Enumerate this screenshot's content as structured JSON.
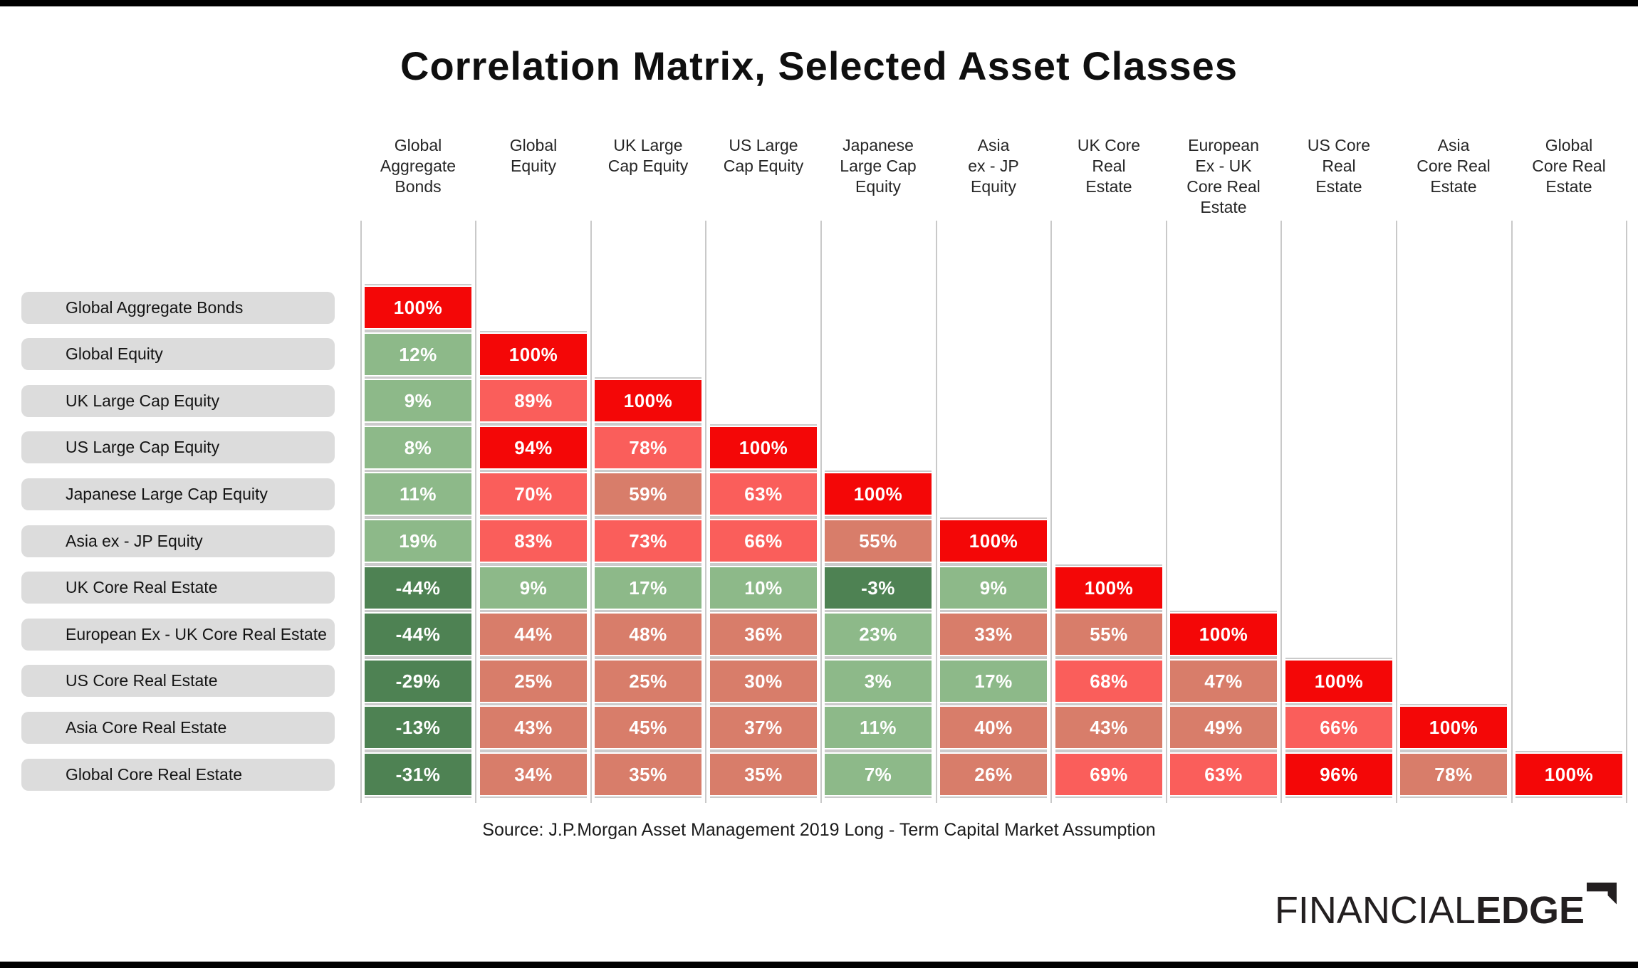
{
  "page": {
    "title": "Correlation Matrix, Selected Asset Classes",
    "source": "Source: J.P.Morgan Asset Management 2019 Long - Term Capital Market Assumption",
    "logo": {
      "thin": "FINANCIAL",
      "bold": "EDGE"
    }
  },
  "palette": {
    "red": "#f40707",
    "salmon": "#fa5e5b",
    "terracotta": "#d87d6a",
    "green": "#8db989",
    "darkgreen": "#4e8253",
    "row_label_bg": "#dcdcdc",
    "grid_line": "#c9c9c9",
    "cell_rule": "#cbcbcb",
    "cell_text": "#ffffff",
    "title_text": "#0f0f0f",
    "logo_color": "#231f20"
  },
  "chart_data": {
    "type": "heatmap",
    "title": "Correlation Matrix, Selected Asset Classes",
    "unit": "%",
    "note": "Lower-triangular correlation matrix; values are percentages; diagonal = 100%",
    "categories": [
      "Global Aggregate Bonds",
      "Global Equity",
      "UK Large Cap Equity",
      "US Large Cap Equity",
      "Japanese Large Cap Equity",
      "Asia ex - JP Equity",
      "UK Core Real Estate",
      "European Ex - UK Core Real Estate",
      "US Core Real Estate",
      "Asia Core Real Estate",
      "Global Core Real Estate"
    ],
    "column_header_lines": [
      [
        "Global",
        "Aggregate",
        "Bonds"
      ],
      [
        "Global",
        "Equity"
      ],
      [
        "UK Large",
        "Cap Equity"
      ],
      [
        "US Large",
        "Cap Equity"
      ],
      [
        "Japanese",
        "Large Cap",
        "Equity"
      ],
      [
        "Asia",
        "ex - JP",
        "Equity"
      ],
      [
        "UK Core",
        "Real",
        "Estate"
      ],
      [
        "European",
        "Ex - UK",
        "Core Real",
        "Estate"
      ],
      [
        "US Core",
        "Real",
        "Estate"
      ],
      [
        "Asia",
        "Core Real",
        "Estate"
      ],
      [
        "Global",
        "Core Real",
        "Estate"
      ]
    ],
    "rows": [
      {
        "label": "Global Aggregate Bonds",
        "values": [
          100
        ],
        "colors": [
          "red"
        ]
      },
      {
        "label": "Global Equity",
        "values": [
          12,
          100
        ],
        "colors": [
          "green",
          "red"
        ]
      },
      {
        "label": "UK Large Cap Equity",
        "values": [
          9,
          89,
          100
        ],
        "colors": [
          "green",
          "salmon",
          "red"
        ]
      },
      {
        "label": "US Large Cap Equity",
        "values": [
          8,
          94,
          78,
          100
        ],
        "colors": [
          "green",
          "red",
          "salmon",
          "red"
        ]
      },
      {
        "label": "Japanese Large Cap Equity",
        "values": [
          11,
          70,
          59,
          63,
          100
        ],
        "colors": [
          "green",
          "salmon",
          "terracotta",
          "salmon",
          "red"
        ]
      },
      {
        "label": "Asia ex - JP Equity",
        "values": [
          19,
          83,
          73,
          66,
          55,
          100
        ],
        "colors": [
          "green",
          "salmon",
          "salmon",
          "salmon",
          "terracotta",
          "red"
        ]
      },
      {
        "label": "UK Core Real Estate",
        "values": [
          -44,
          9,
          17,
          10,
          -3,
          9,
          100
        ],
        "colors": [
          "darkgreen",
          "green",
          "green",
          "green",
          "darkgreen",
          "green",
          "red"
        ]
      },
      {
        "label": "European Ex - UK Core Real Estate",
        "values": [
          -44,
          44,
          48,
          36,
          23,
          33,
          55,
          100
        ],
        "colors": [
          "darkgreen",
          "terracotta",
          "terracotta",
          "terracotta",
          "green",
          "terracotta",
          "terracotta",
          "red"
        ]
      },
      {
        "label": "US Core Real Estate",
        "values": [
          -29,
          25,
          25,
          30,
          3,
          17,
          68,
          47,
          100
        ],
        "colors": [
          "darkgreen",
          "terracotta",
          "terracotta",
          "terracotta",
          "green",
          "green",
          "salmon",
          "terracotta",
          "red"
        ]
      },
      {
        "label": "Asia Core Real Estate",
        "values": [
          -13,
          43,
          45,
          37,
          11,
          40,
          43,
          49,
          66,
          100
        ],
        "colors": [
          "darkgreen",
          "terracotta",
          "terracotta",
          "terracotta",
          "green",
          "terracotta",
          "terracotta",
          "terracotta",
          "salmon",
          "red"
        ]
      },
      {
        "label": "Global Core Real Estate",
        "values": [
          -31,
          34,
          35,
          35,
          7,
          26,
          69,
          63,
          96,
          78,
          100
        ],
        "colors": [
          "darkgreen",
          "terracotta",
          "terracotta",
          "terracotta",
          "green",
          "terracotta",
          "salmon",
          "salmon",
          "red",
          "terracotta",
          "red"
        ]
      }
    ]
  }
}
